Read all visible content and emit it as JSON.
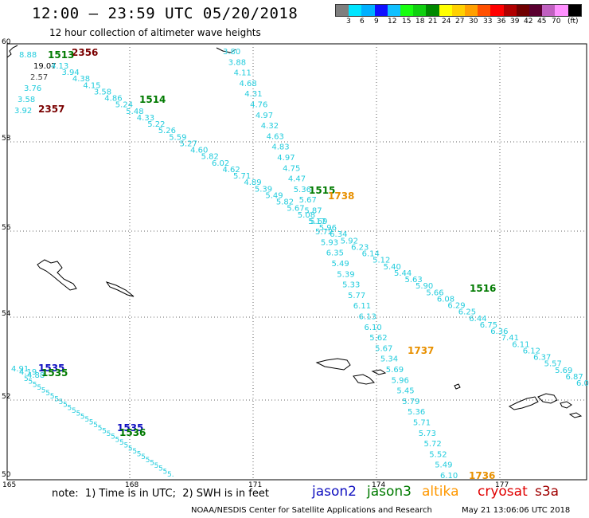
{
  "header": {
    "title": "12:00 – 23:59 UTC 05/20/2018",
    "subtitle": "12 hour collection of altimeter wave heights"
  },
  "legend": {
    "colors": [
      "#7f7f7f",
      "#00e5ff",
      "#00b0ff",
      "#1010ff",
      "#10c0ff",
      "#18ff10",
      "#10d010",
      "#008800",
      "#ffff00",
      "#ffd000",
      "#ffa000",
      "#ff5000",
      "#ff0000",
      "#b00000",
      "#700000",
      "#5a0030",
      "#c060c0",
      "#ff90ff",
      "#000000"
    ],
    "labels": [
      "3",
      "6",
      "9",
      "12",
      "15",
      "18",
      "21",
      "24",
      "27",
      "30",
      "33",
      "36",
      "39",
      "42",
      "45",
      "70",
      "(ft)"
    ]
  },
  "axes": {
    "y_ticks": [
      "60",
      "58",
      "56",
      "54",
      "52",
      "50"
    ],
    "x_ticks": [
      "165",
      "168",
      "171",
      "174",
      "177"
    ]
  },
  "track_labels": [
    {
      "text": "2356",
      "color": "#7a0000"
    },
    {
      "text": "1513",
      "color": "#007a00"
    },
    {
      "text": "1514",
      "color": "#007a00"
    },
    {
      "text": "2357",
      "color": "#7a0000"
    },
    {
      "text": "1515",
      "color": "#007a00"
    },
    {
      "text": "1738",
      "color": "#e89000"
    },
    {
      "text": "1516",
      "color": "#007a00"
    },
    {
      "text": "1737",
      "color": "#e89000"
    },
    {
      "text": "1535",
      "color": "#1010c0"
    },
    {
      "text": "1535",
      "color": "#007a00"
    },
    {
      "text": "1535",
      "color": "#1010c0"
    },
    {
      "text": "1536",
      "color": "#007a00"
    },
    {
      "text": "1736",
      "color": "#e89000"
    }
  ],
  "track_a": [
    "8.88",
    "19.07",
    "2.57",
    "3.76",
    "3.58",
    "3.92"
  ],
  "track_b": [
    "4.13",
    "3.94",
    "4.38",
    "4.15",
    "3.58",
    "4.86",
    "5.24",
    "5.48",
    "4.33",
    "5.22",
    "5.26",
    "5.59",
    "5.27",
    "4.60",
    "5.82",
    "6.02",
    "4.62",
    "5.71",
    "4.89",
    "5.39",
    "5.49",
    "5.82",
    "5.67",
    "5.08",
    "5.17",
    "5.96",
    "6.34",
    "5.92",
    "6.23",
    "6.14",
    "5.12",
    "5.40",
    "5.44",
    "5.63",
    "5.90",
    "5.66",
    "6.08",
    "6.29",
    "6.25",
    "6.44",
    "6.75",
    "6.36",
    "7.41",
    "6.11",
    "6.12",
    "6.37",
    "5.57",
    "5.69",
    "6.87",
    "6.0"
  ],
  "track_c": [
    "3.80",
    "3.88",
    "4.11",
    "4.68",
    "4.31",
    "4.76",
    "4.97",
    "4.32",
    "4.63",
    "4.83",
    "4.97",
    "4.75",
    "4.47",
    "5.36",
    "5.67",
    "5.87",
    "5.69",
    "5.72",
    "5.93",
    "6.35",
    "5.49",
    "5.39",
    "5.33",
    "5.77",
    "6.11",
    "6.13",
    "6.10",
    "5.62",
    "5.67",
    "5.34",
    "5.69",
    "5.96",
    "5.45",
    "5.79",
    "5.36",
    "5.71",
    "5.73",
    "5.72",
    "5.52",
    "5.49",
    "6.10"
  ],
  "track_d": [
    "4.91",
    "4.19",
    "4.88"
  ],
  "footer": {
    "note": "note:  1) Time is in UTC;  2) SWH is in feet",
    "satellites": [
      {
        "name": "jason2",
        "color": "#1010c0"
      },
      {
        "name": "jason3",
        "color": "#007a00"
      },
      {
        "name": "altika",
        "color": "#ff9800"
      },
      {
        "name": "cryosat",
        "color": "#e00000"
      },
      {
        "name": "s3a",
        "color": "#a00000"
      }
    ],
    "credit": "NOAA/NESDIS Center for Satellite Applications and Research",
    "timestamp": "May 21 13:06:06 UTC 2018"
  }
}
